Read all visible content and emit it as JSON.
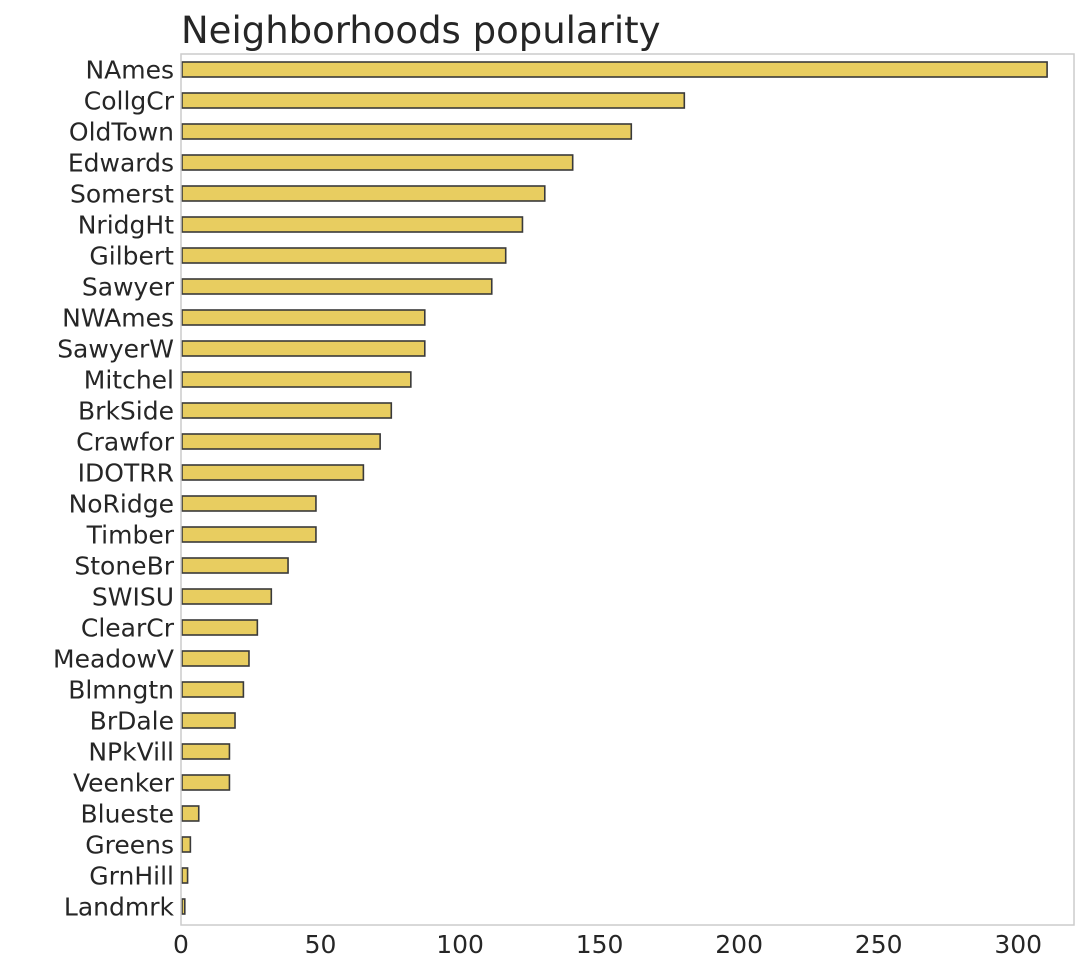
{
  "chart_data": {
    "type": "bar",
    "orientation": "horizontal",
    "title": "Neighborhoods popularity",
    "xlabel": "",
    "ylabel": "",
    "categories": [
      "NAmes",
      "CollgCr",
      "OldTown",
      "Edwards",
      "Somerst",
      "NridgHt",
      "Gilbert",
      "Sawyer",
      "NWAmes",
      "SawyerW",
      "Mitchel",
      "BrkSide",
      "Crawfor",
      "IDOTRR",
      "NoRidge",
      "Timber",
      "StoneBr",
      "SWISU",
      "ClearCr",
      "MeadowV",
      "Blmngtn",
      "BrDale",
      "NPkVill",
      "Veenker",
      "Blueste",
      "Greens",
      "GrnHill",
      "Landmrk"
    ],
    "values": [
      310,
      180,
      161,
      140,
      130,
      122,
      116,
      111,
      87,
      87,
      82,
      75,
      71,
      65,
      48,
      48,
      38,
      32,
      27,
      24,
      22,
      19,
      17,
      17,
      6,
      3,
      2,
      1
    ],
    "xlim": [
      0,
      320
    ],
    "xticks": [
      0,
      50,
      100,
      150,
      200,
      250,
      300
    ],
    "grid": false,
    "bar_color": "#e8cd60",
    "bar_edge_color": "#3a3a3a"
  }
}
